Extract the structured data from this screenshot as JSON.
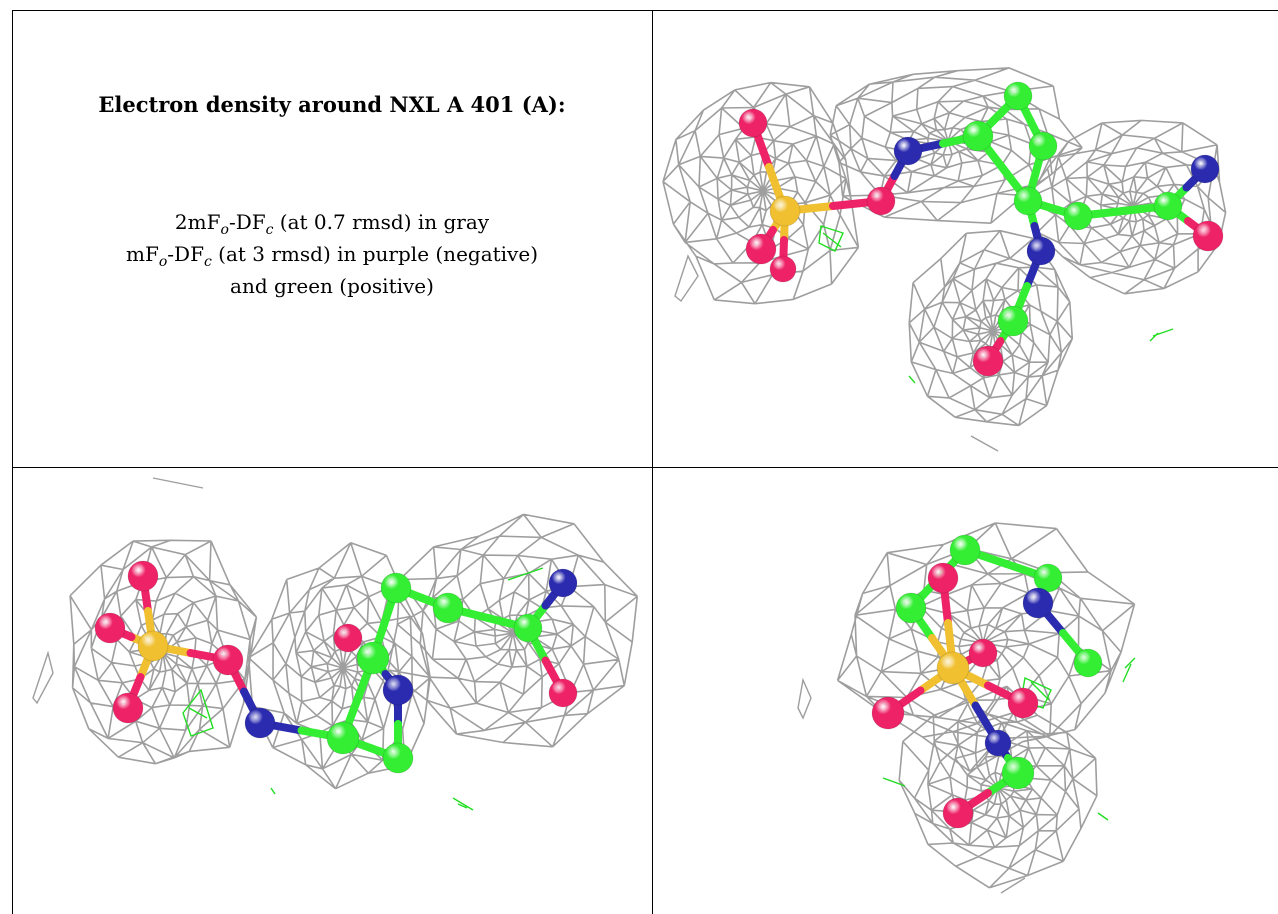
{
  "caption": {
    "title": "Electron density around NXL A 401 (A):",
    "line1_main": "2mF",
    "line1_sub_o": "o",
    "line1_mid": "-DF",
    "line1_sub_c": "c",
    "line1_rest": " (at 0.7 rmsd) in gray",
    "line2_main": "mF",
    "line2_sub_o": "o",
    "line2_mid": "-DF",
    "line2_sub_c": "c",
    "line2_rest": " (at 3 rmsd) in purple (negative)",
    "line3": "and green (positive)"
  },
  "colors": {
    "mesh": "#9e9e9e",
    "carbon": "#33ee33",
    "oxygen": "#ee2266",
    "nitrogen": "#2b2bb0",
    "sulfur": "#f0c030",
    "positive": "#22dd22"
  }
}
